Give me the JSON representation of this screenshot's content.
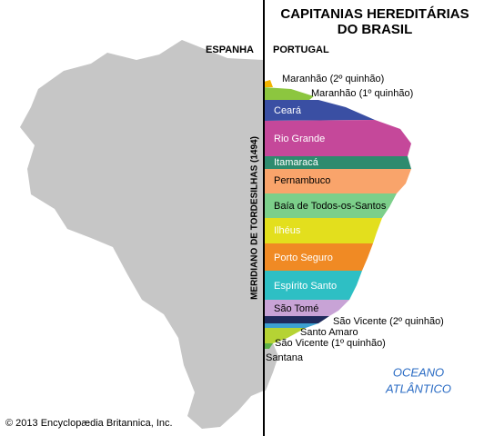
{
  "header": {
    "title_line1": "CAPITANIAS HEREDITÁRIAS",
    "title_line2": "DO BRASIL"
  },
  "regions": {
    "west": "ESPANHA",
    "east": "PORTUGAL"
  },
  "meridian": "MERIDIANO DE TORDESILHAS (1494)",
  "captaincies": [
    "Maranhão (2º quinhão)",
    "Maranhão (1º quinhão)",
    "Ceará",
    "Rio Grande",
    "Itamaracá",
    "Pernambuco",
    "Baía de Todos-os-Santos",
    "Ilhéus",
    "Porto Seguro",
    "Espírito Santo",
    "São Tomé",
    "São Vicente (2º quinhão)",
    "Santo Amaro",
    "São Vicente (1º quinhão)",
    "Santana"
  ],
  "ocean": {
    "line1": "OCEANO",
    "line2": "ATLÂNTICO"
  },
  "copyright": "© 2013 Encyclopædia Britannica, Inc."
}
